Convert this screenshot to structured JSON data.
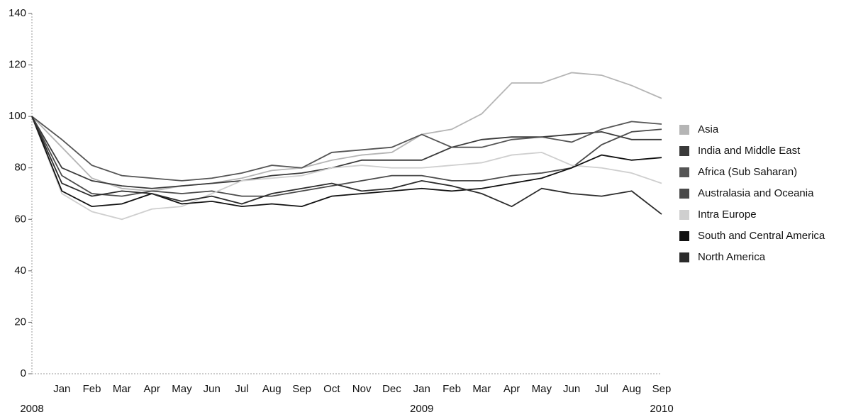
{
  "chart_data": {
    "type": "line",
    "categories": [
      null,
      "Jan",
      "Feb",
      "Mar",
      "Apr",
      "May",
      "Jun",
      "Jul",
      "Aug",
      "Sep",
      "Oct",
      "Nov",
      "Dec",
      "Jan",
      "Feb",
      "Mar",
      "Apr",
      "May",
      "Jun",
      "Jul",
      "Aug",
      "Sep"
    ],
    "x_groups": [
      "2008",
      null,
      null,
      null,
      null,
      null,
      null,
      null,
      null,
      null,
      null,
      null,
      null,
      "2009",
      null,
      null,
      null,
      null,
      null,
      null,
      null,
      "2010"
    ],
    "ylim": [
      0,
      140
    ],
    "yticks": [
      0,
      20,
      40,
      60,
      80,
      100,
      120,
      140
    ],
    "legend": "right",
    "series": [
      {
        "name": "Asia",
        "color": "#b5b5b5",
        "values": [
          100,
          88,
          76,
          72,
          71,
          73,
          74,
          76,
          79,
          80,
          83,
          85,
          86,
          93,
          95,
          101,
          113,
          113,
          117,
          116,
          112,
          107
        ]
      },
      {
        "name": "India and Middle East",
        "color": "#3a3a3a",
        "values": [
          100,
          80,
          75,
          73,
          72,
          73,
          74,
          75,
          77,
          78,
          80,
          83,
          83,
          83,
          88,
          91,
          92,
          92,
          93,
          94,
          91,
          91
        ]
      },
      {
        "name": "Africa (Sub Saharan)",
        "color": "#555555",
        "values": [
          100,
          91,
          81,
          77,
          76,
          75,
          76,
          78,
          81,
          80,
          86,
          87,
          88,
          93,
          88,
          88,
          91,
          92,
          90,
          95,
          98,
          97
        ]
      },
      {
        "name": "Australasia and Oceania",
        "color": "#4a4a4a",
        "values": [
          100,
          77,
          70,
          69,
          71,
          70,
          71,
          69,
          69,
          71,
          73,
          75,
          77,
          77,
          75,
          75,
          77,
          78,
          80,
          89,
          94,
          95
        ]
      },
      {
        "name": "Intra Europe",
        "color": "#cfcfcf",
        "values": [
          100,
          70,
          63,
          60,
          64,
          65,
          70,
          75,
          76,
          77,
          80,
          81,
          80,
          80,
          81,
          82,
          85,
          86,
          81,
          80,
          78,
          74
        ]
      },
      {
        "name": "South and Central America",
        "color": "#111111",
        "values": [
          100,
          71,
          65,
          66,
          70,
          66,
          67,
          65,
          66,
          65,
          69,
          70,
          71,
          72,
          71,
          72,
          74,
          76,
          80,
          85,
          83,
          84
        ]
      },
      {
        "name": "North America",
        "color": "#2b2b2b",
        "values": [
          100,
          74,
          69,
          71,
          70,
          67,
          69,
          66,
          70,
          72,
          74,
          71,
          72,
          75,
          73,
          70,
          65,
          72,
          70,
          69,
          71,
          62
        ]
      }
    ]
  }
}
